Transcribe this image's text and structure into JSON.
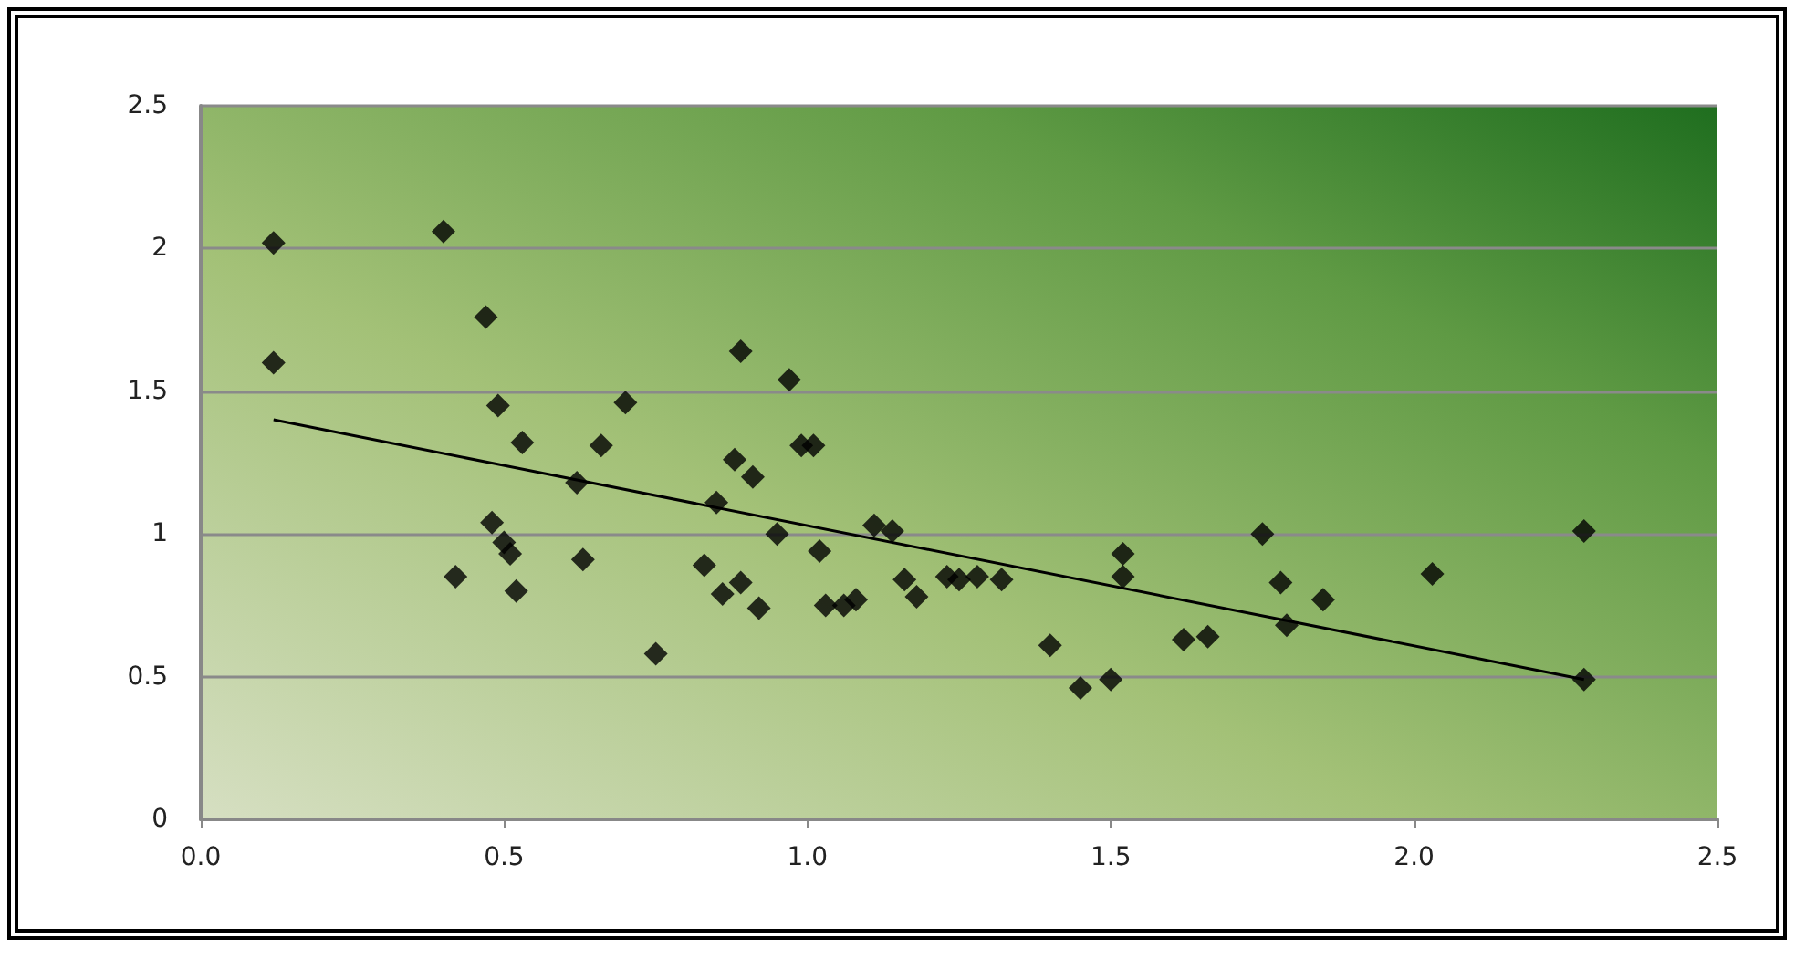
{
  "chart_data": {
    "type": "scatter",
    "grid": "y",
    "xlim": [
      0,
      2.5
    ],
    "ylim": [
      0,
      2.5
    ],
    "xticks": [
      {
        "value": 0,
        "label": "0.0"
      },
      {
        "value": 0.5,
        "label": "0.5"
      },
      {
        "value": 1,
        "label": "1.0"
      },
      {
        "value": 1.5,
        "label": "1.5"
      },
      {
        "value": 2,
        "label": "2.0"
      },
      {
        "value": 2.5,
        "label": "2.5"
      }
    ],
    "yticks": [
      0,
      0.5,
      1,
      1.5,
      2,
      2.5
    ],
    "series": [
      {
        "marker": "diamond",
        "color": "#000000",
        "x": [
          0.12,
          0.12,
          0.4,
          0.47,
          0.49,
          0.53,
          0.48,
          0.5,
          0.51,
          0.42,
          0.52,
          0.62,
          0.63,
          0.66,
          0.7,
          0.75,
          0.83,
          0.85,
          0.86,
          0.88,
          0.89,
          0.89,
          0.91,
          0.92,
          0.95,
          0.97,
          0.99,
          1.01,
          1.02,
          1.03,
          1.06,
          1.08,
          1.11,
          1.14,
          1.16,
          1.18,
          1.23,
          1.25,
          1.28,
          1.32,
          1.4,
          1.45,
          1.5,
          1.52,
          1.52,
          1.62,
          1.66,
          1.75,
          1.78,
          1.79,
          1.85,
          2.03,
          2.28,
          2.28
        ],
        "values": [
          2.02,
          1.6,
          2.06,
          1.76,
          1.45,
          1.32,
          1.04,
          0.97,
          0.93,
          0.85,
          0.8,
          1.18,
          0.91,
          1.31,
          1.46,
          0.58,
          0.89,
          1.11,
          0.79,
          1.26,
          1.64,
          0.83,
          1.2,
          0.74,
          1.0,
          1.54,
          1.31,
          1.31,
          0.94,
          0.75,
          0.75,
          0.77,
          1.03,
          1.01,
          0.84,
          0.78,
          0.85,
          0.84,
          0.85,
          0.84,
          0.61,
          0.46,
          0.49,
          0.93,
          0.85,
          0.63,
          0.64,
          1.0,
          0.83,
          0.68,
          0.77,
          0.86,
          1.01,
          0.49
        ]
      },
      {
        "type": "line",
        "marker": "none",
        "color": "#000000",
        "x": [
          0.12,
          2.28
        ],
        "values": [
          1.4,
          0.49
        ]
      }
    ]
  }
}
